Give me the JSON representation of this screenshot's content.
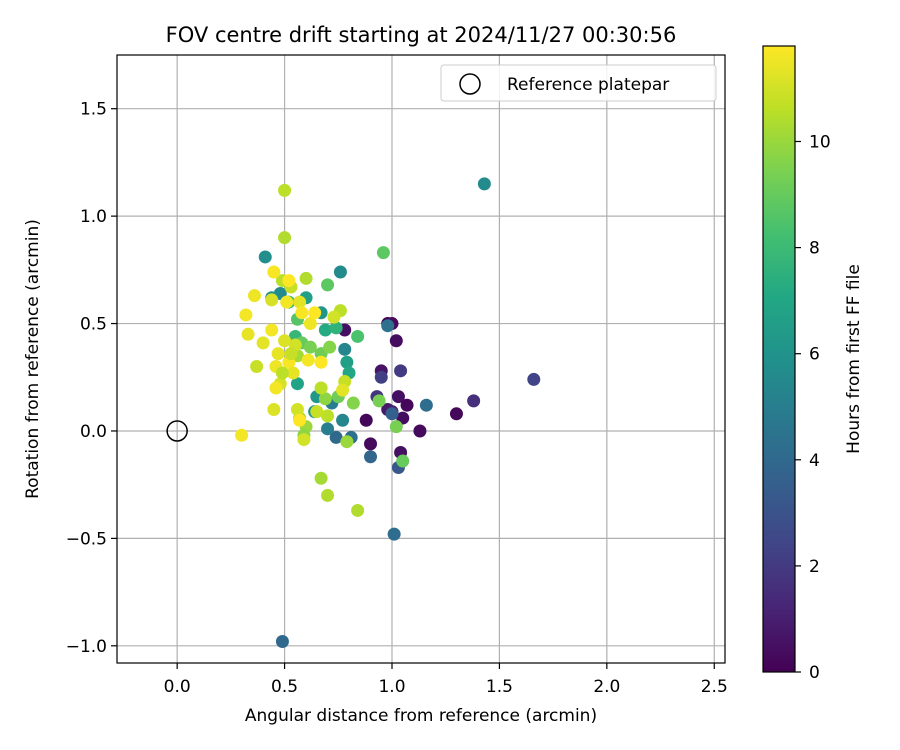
{
  "chart_data": {
    "type": "scatter",
    "title": "FOV centre drift starting at 2024/11/27 00:30:56",
    "xlabel": "Angular distance from reference (arcmin)",
    "ylabel": "Rotation from reference (arcmin)",
    "xlim": [
      -0.28,
      2.55
    ],
    "ylim": [
      -1.08,
      1.75
    ],
    "xticks": [
      0.0,
      0.5,
      1.0,
      1.5,
      2.0,
      2.5
    ],
    "xtick_labels": [
      "0.0",
      "0.5",
      "1.0",
      "1.5",
      "2.0",
      "2.5"
    ],
    "yticks": [
      -1.0,
      -0.5,
      0.0,
      0.5,
      1.0,
      1.5
    ],
    "ytick_labels": [
      "−1.0",
      "−0.5",
      "0.0",
      "0.5",
      "1.0",
      "1.5"
    ],
    "grid": true,
    "legend": {
      "position": "top-right",
      "entries": [
        "Reference platepar"
      ]
    },
    "reference": {
      "x": 0.0,
      "y": 0.0,
      "label": "Reference platepar"
    },
    "colorbar": {
      "label": "Hours from first FF file",
      "colormap": "viridis",
      "range": [
        0,
        11.8
      ],
      "ticks": [
        0,
        2,
        4,
        6,
        8,
        10
      ],
      "tick_labels": [
        "0",
        "2",
        "4",
        "6",
        "8",
        "10"
      ]
    },
    "points": [
      {
        "x": 0.98,
        "y": 0.5,
        "h": 0.1
      },
      {
        "x": 1.0,
        "y": 0.5,
        "h": 0.3
      },
      {
        "x": 0.78,
        "y": 0.47,
        "h": 0.5
      },
      {
        "x": 1.02,
        "y": 0.42,
        "h": 0.4
      },
      {
        "x": 0.95,
        "y": 0.28,
        "h": 0.6
      },
      {
        "x": 0.88,
        "y": 0.05,
        "h": 0.2
      },
      {
        "x": 0.9,
        "y": -0.06,
        "h": 0.3
      },
      {
        "x": 0.98,
        "y": 0.1,
        "h": 0.8
      },
      {
        "x": 1.03,
        "y": 0.16,
        "h": 0.5
      },
      {
        "x": 1.07,
        "y": 0.12,
        "h": 0.2
      },
      {
        "x": 1.05,
        "y": 0.06,
        "h": 0.4
      },
      {
        "x": 1.13,
        "y": 0.0,
        "h": 0.3
      },
      {
        "x": 1.04,
        "y": -0.1,
        "h": 0.5
      },
      {
        "x": 1.3,
        "y": 0.08,
        "h": 0.2
      },
      {
        "x": 1.0,
        "y": 0.09,
        "h": 1.0
      },
      {
        "x": 0.93,
        "y": 0.16,
        "h": 1.8
      },
      {
        "x": 0.95,
        "y": 0.25,
        "h": 2.2
      },
      {
        "x": 1.04,
        "y": 0.28,
        "h": 2.0
      },
      {
        "x": 1.38,
        "y": 0.14,
        "h": 1.6
      },
      {
        "x": 1.66,
        "y": 0.24,
        "h": 2.4
      },
      {
        "x": 1.03,
        "y": -0.17,
        "h": 3.2
      },
      {
        "x": 0.9,
        "y": -0.12,
        "h": 3.8
      },
      {
        "x": 1.16,
        "y": 0.12,
        "h": 4.2
      },
      {
        "x": 1.0,
        "y": 0.08,
        "h": 3.6
      },
      {
        "x": 0.74,
        "y": -0.03,
        "h": 4.0
      },
      {
        "x": 0.81,
        "y": -0.03,
        "h": 4.4
      },
      {
        "x": 1.01,
        "y": -0.48,
        "h": 4.2
      },
      {
        "x": 0.49,
        "y": -0.98,
        "h": 4.0
      },
      {
        "x": 0.98,
        "y": 0.49,
        "h": 4.4
      },
      {
        "x": 0.7,
        "y": 0.01,
        "h": 5.0
      },
      {
        "x": 0.77,
        "y": 0.05,
        "h": 5.4
      },
      {
        "x": 0.72,
        "y": 0.13,
        "h": 5.0
      },
      {
        "x": 0.78,
        "y": 0.38,
        "h": 5.4
      },
      {
        "x": 0.76,
        "y": 0.74,
        "h": 5.6
      },
      {
        "x": 1.43,
        "y": 1.15,
        "h": 5.6
      },
      {
        "x": 0.41,
        "y": 0.81,
        "h": 5.8
      },
      {
        "x": 0.48,
        "y": 0.64,
        "h": 5.6
      },
      {
        "x": 0.44,
        "y": 0.62,
        "h": 6.0
      },
      {
        "x": 0.67,
        "y": 0.55,
        "h": 6.2
      },
      {
        "x": 0.6,
        "y": 0.62,
        "h": 6.6
      },
      {
        "x": 0.65,
        "y": 0.16,
        "h": 6.2
      },
      {
        "x": 0.64,
        "y": 0.09,
        "h": 6.0
      },
      {
        "x": 0.56,
        "y": 0.22,
        "h": 6.8
      },
      {
        "x": 0.79,
        "y": 0.32,
        "h": 6.6
      },
      {
        "x": 0.8,
        "y": 0.27,
        "h": 7.0
      },
      {
        "x": 0.69,
        "y": 0.47,
        "h": 7.2
      },
      {
        "x": 0.74,
        "y": 0.48,
        "h": 7.6
      },
      {
        "x": 0.55,
        "y": 0.44,
        "h": 7.8
      },
      {
        "x": 0.7,
        "y": 0.68,
        "h": 8.8
      },
      {
        "x": 0.96,
        "y": 0.83,
        "h": 8.8
      },
      {
        "x": 0.84,
        "y": 0.44,
        "h": 8.4
      },
      {
        "x": 0.52,
        "y": 0.6,
        "h": 8.0
      },
      {
        "x": 0.56,
        "y": 0.52,
        "h": 8.6
      },
      {
        "x": 0.58,
        "y": 0.41,
        "h": 9.0
      },
      {
        "x": 0.62,
        "y": 0.39,
        "h": 9.4
      },
      {
        "x": 0.67,
        "y": 0.36,
        "h": 9.2
      },
      {
        "x": 0.71,
        "y": 0.39,
        "h": 9.6
      },
      {
        "x": 0.69,
        "y": 0.15,
        "h": 9.8
      },
      {
        "x": 0.75,
        "y": 0.16,
        "h": 9.2
      },
      {
        "x": 0.82,
        "y": 0.13,
        "h": 9.6
      },
      {
        "x": 0.94,
        "y": 0.14,
        "h": 9.4
      },
      {
        "x": 1.02,
        "y": 0.02,
        "h": 9.4
      },
      {
        "x": 1.05,
        "y": -0.14,
        "h": 9.0
      },
      {
        "x": 0.79,
        "y": -0.05,
        "h": 10.0
      },
      {
        "x": 0.57,
        "y": 0.06,
        "h": 10.2
      },
      {
        "x": 0.6,
        "y": 0.02,
        "h": 10.0
      },
      {
        "x": 0.59,
        "y": -0.02,
        "h": 9.8
      },
      {
        "x": 0.67,
        "y": -0.22,
        "h": 10.2
      },
      {
        "x": 0.7,
        "y": -0.3,
        "h": 10.4
      },
      {
        "x": 0.84,
        "y": -0.37,
        "h": 10.4
      },
      {
        "x": 0.5,
        "y": 1.12,
        "h": 10.6
      },
      {
        "x": 0.5,
        "y": 0.9,
        "h": 10.4
      },
      {
        "x": 0.49,
        "y": 0.7,
        "h": 10.6
      },
      {
        "x": 0.6,
        "y": 0.71,
        "h": 10.4
      },
      {
        "x": 0.53,
        "y": 0.67,
        "h": 10.8
      },
      {
        "x": 0.76,
        "y": 0.56,
        "h": 10.6
      },
      {
        "x": 0.37,
        "y": 0.3,
        "h": 10.8
      },
      {
        "x": 0.56,
        "y": 0.35,
        "h": 10.2
      },
      {
        "x": 0.67,
        "y": 0.2,
        "h": 10.6
      },
      {
        "x": 0.78,
        "y": 0.23,
        "h": 10.8
      },
      {
        "x": 0.7,
        "y": 0.07,
        "h": 10.6
      },
      {
        "x": 0.65,
        "y": 0.09,
        "h": 10.8
      },
      {
        "x": 0.56,
        "y": 0.1,
        "h": 11.0
      },
      {
        "x": 0.59,
        "y": -0.04,
        "h": 11.0
      },
      {
        "x": 0.45,
        "y": 0.1,
        "h": 11.2
      },
      {
        "x": 0.3,
        "y": -0.02,
        "h": 11.6
      },
      {
        "x": 0.33,
        "y": 0.45,
        "h": 11.4
      },
      {
        "x": 0.32,
        "y": 0.54,
        "h": 11.6
      },
      {
        "x": 0.36,
        "y": 0.63,
        "h": 11.5
      },
      {
        "x": 0.4,
        "y": 0.41,
        "h": 11.3
      },
      {
        "x": 0.44,
        "y": 0.47,
        "h": 11.6
      },
      {
        "x": 0.44,
        "y": 0.61,
        "h": 11.1
      },
      {
        "x": 0.45,
        "y": 0.74,
        "h": 11.7
      },
      {
        "x": 0.47,
        "y": 0.36,
        "h": 11.4
      },
      {
        "x": 0.5,
        "y": 0.42,
        "h": 11.2
      },
      {
        "x": 0.51,
        "y": 0.6,
        "h": 11.6
      },
      {
        "x": 0.52,
        "y": 0.7,
        "h": 11.8
      },
      {
        "x": 0.55,
        "y": 0.4,
        "h": 11.0
      },
      {
        "x": 0.57,
        "y": 0.6,
        "h": 11.3
      },
      {
        "x": 0.58,
        "y": 0.55,
        "h": 11.7
      },
      {
        "x": 0.62,
        "y": 0.5,
        "h": 11.5
      },
      {
        "x": 0.64,
        "y": 0.55,
        "h": 11.8
      },
      {
        "x": 0.61,
        "y": 0.33,
        "h": 11.6
      },
      {
        "x": 0.67,
        "y": 0.32,
        "h": 11.8
      },
      {
        "x": 0.46,
        "y": 0.3,
        "h": 11.5
      },
      {
        "x": 0.48,
        "y": 0.22,
        "h": 11.1
      },
      {
        "x": 0.52,
        "y": 0.32,
        "h": 11.7
      },
      {
        "x": 0.54,
        "y": 0.27,
        "h": 11.4
      },
      {
        "x": 0.46,
        "y": 0.2,
        "h": 11.6
      },
      {
        "x": 0.77,
        "y": 0.19,
        "h": 11.3
      },
      {
        "x": 0.57,
        "y": 0.05,
        "h": 11.8
      },
      {
        "x": 0.73,
        "y": 0.53,
        "h": 11.0
      },
      {
        "x": 0.53,
        "y": 0.36,
        "h": 10.8
      },
      {
        "x": 0.49,
        "y": 0.27,
        "h": 10.6
      }
    ]
  }
}
